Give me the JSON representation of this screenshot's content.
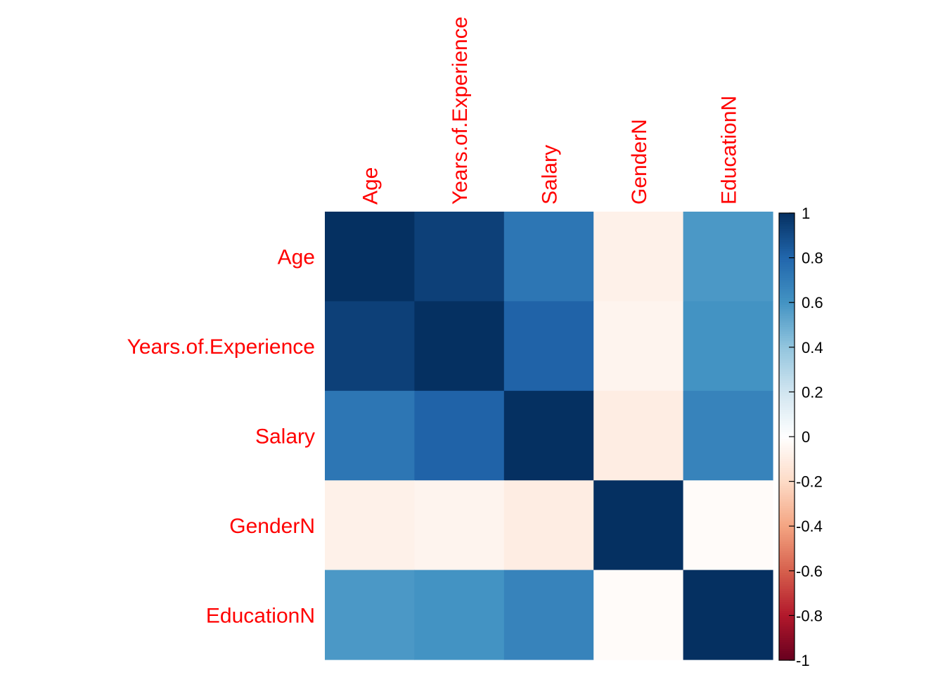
{
  "chart_data": {
    "type": "heatmap",
    "subtype": "correlation-matrix",
    "title": "",
    "variables": [
      "Age",
      "Years.of.Experience",
      "Salary",
      "GenderN",
      "EducationN"
    ],
    "matrix": [
      [
        1.0,
        0.94,
        0.73,
        -0.08,
        0.58
      ],
      [
        0.94,
        1.0,
        0.81,
        -0.06,
        0.6
      ],
      [
        0.73,
        0.81,
        1.0,
        -0.1,
        0.67
      ],
      [
        -0.08,
        -0.06,
        -0.1,
        1.0,
        -0.02
      ],
      [
        0.58,
        0.6,
        0.67,
        -0.02,
        1.0
      ]
    ],
    "label_color": "#FF0000",
    "colorbar": {
      "range": [
        -1,
        1
      ],
      "ticks": [
        1,
        0.8,
        0.6,
        0.4,
        0.2,
        0,
        -0.2,
        -0.4,
        -0.6,
        -0.8,
        -1
      ],
      "tick_labels": [
        "1",
        "0.8",
        "0.6",
        "0.4",
        "0.2",
        "0",
        "-0.2",
        "-0.4",
        "-0.6",
        "-0.8",
        "-1"
      ],
      "palette": [
        "#67001F",
        "#B2182B",
        "#D6604D",
        "#F4A582",
        "#FDDBC7",
        "#FFFFFF",
        "#D1E5F0",
        "#92C5DE",
        "#4393C3",
        "#2166AC",
        "#053061"
      ]
    }
  }
}
